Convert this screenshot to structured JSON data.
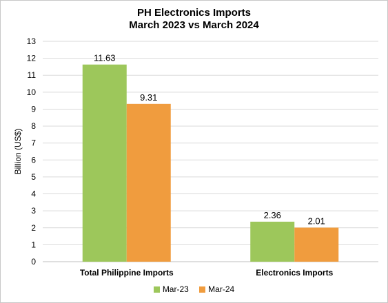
{
  "chart_data": {
    "type": "bar",
    "title": "PH Electronics Imports",
    "subtitle": "March 2023 vs March 2024",
    "ylabel": "Billion (US$)",
    "xlabel": "",
    "ylim": [
      0,
      13
    ],
    "yticks": [
      0,
      1,
      2,
      3,
      4,
      5,
      6,
      7,
      8,
      9,
      10,
      11,
      12,
      13
    ],
    "categories": [
      "Total Philippine Imports",
      "Electronics Imports"
    ],
    "series": [
      {
        "name": "Mar-23",
        "values": [
          11.63,
          2.36
        ],
        "labels": [
          "11.63",
          "2.36"
        ],
        "color": "#9dc75b"
      },
      {
        "name": "Mar-24",
        "values": [
          9.31,
          2.01
        ],
        "labels": [
          "9.31",
          "2.01"
        ],
        "color": "#f09c3e"
      }
    ],
    "grid": true,
    "legend_position": "bottom"
  }
}
